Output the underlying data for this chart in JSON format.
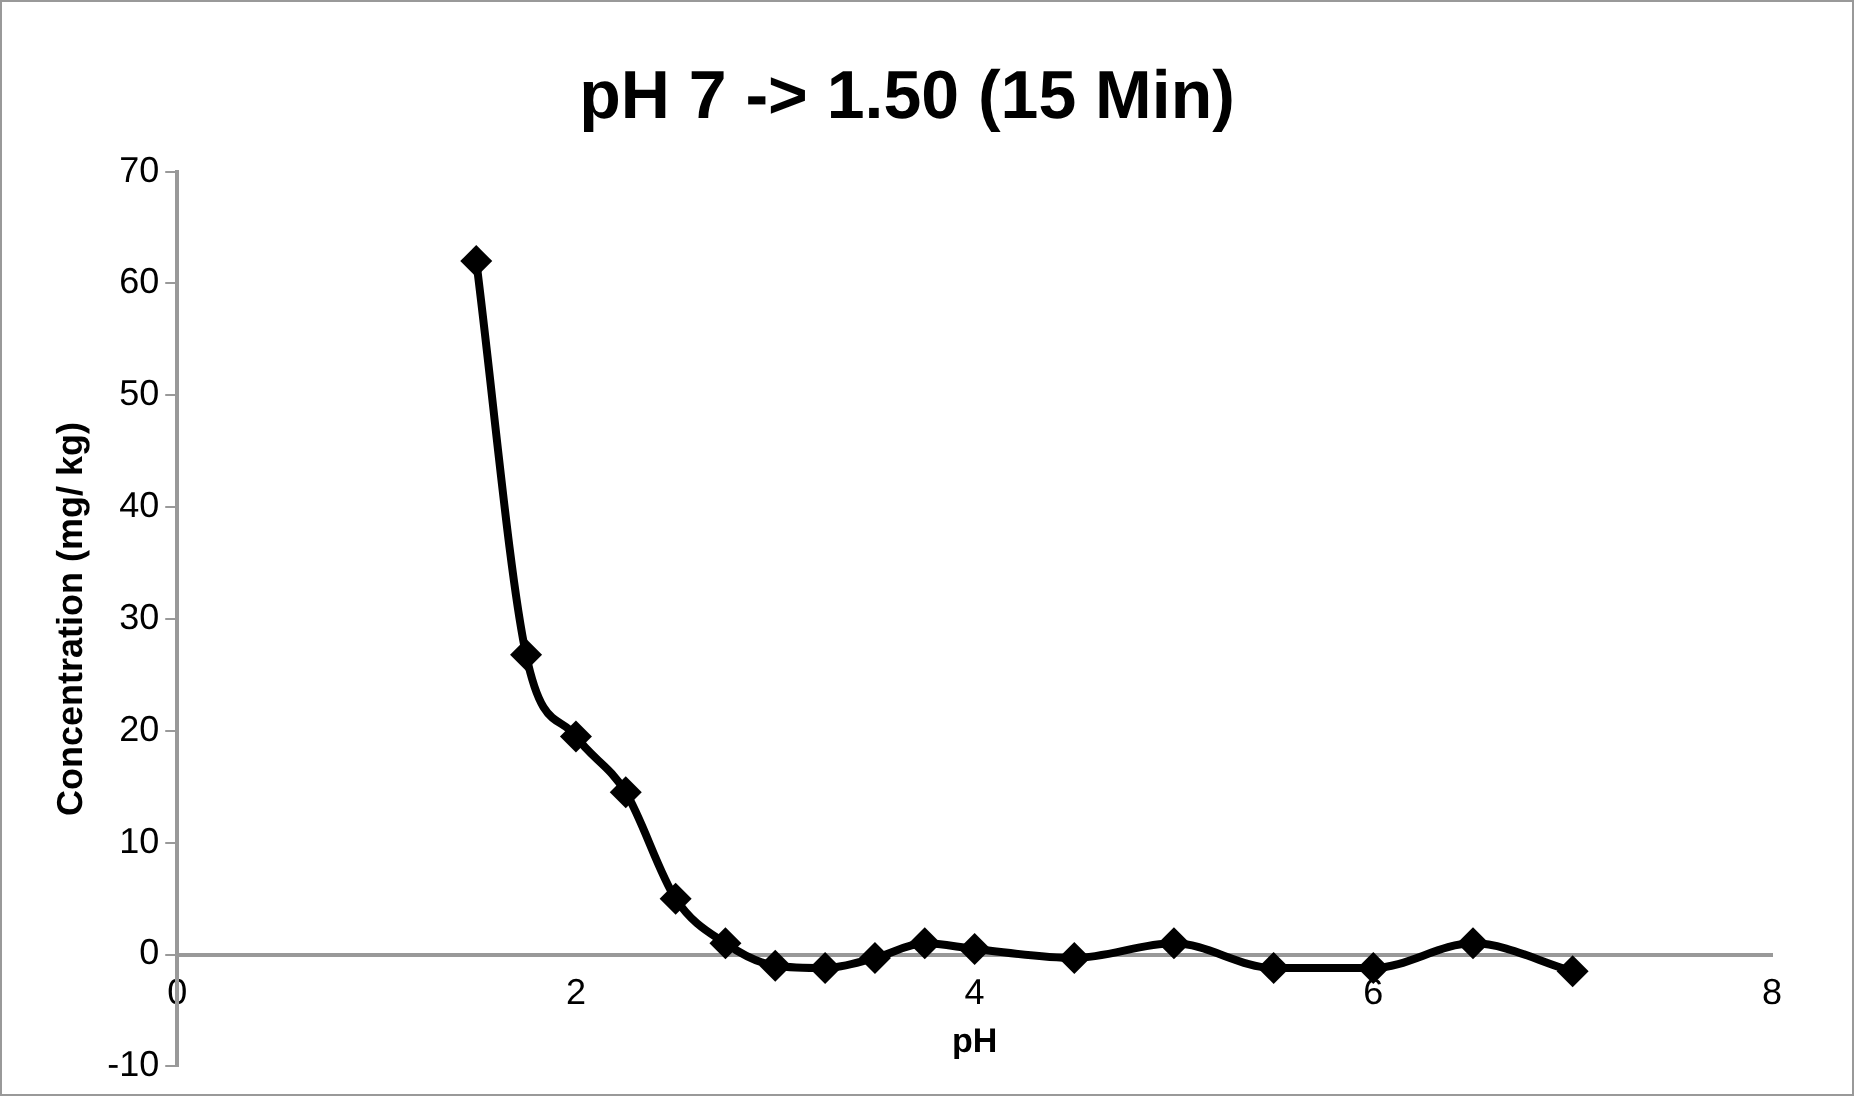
{
  "chart_data": {
    "type": "line",
    "title": "pH 7 -> 1.50 (15 Min)",
    "xlabel": "pH",
    "ylabel": "Concentration (mg/ kg)",
    "x": [
      1.5,
      1.75,
      2,
      2.25,
      2.5,
      2.75,
      3,
      3.25,
      3.5,
      3.75,
      4,
      4.5,
      5,
      5.5,
      6,
      6.5,
      7
    ],
    "series": [
      {
        "color": "#000000",
        "values": [
          62,
          26.8,
          19.5,
          14.5,
          5,
          1,
          -1,
          -1.2,
          -0.3,
          1,
          0.5,
          -0.3,
          1,
          -1.2,
          -1.2,
          1,
          -1.5
        ]
      }
    ],
    "xlim": [
      0,
      8
    ],
    "xticks": [
      0,
      2,
      4,
      6,
      8
    ],
    "ylim": [
      -10,
      70
    ],
    "yticks": [
      -10,
      0,
      10,
      20,
      30,
      40,
      50,
      60,
      70
    ],
    "grid": false,
    "legend": false,
    "marker": "diamond",
    "line_style": "solid"
  }
}
